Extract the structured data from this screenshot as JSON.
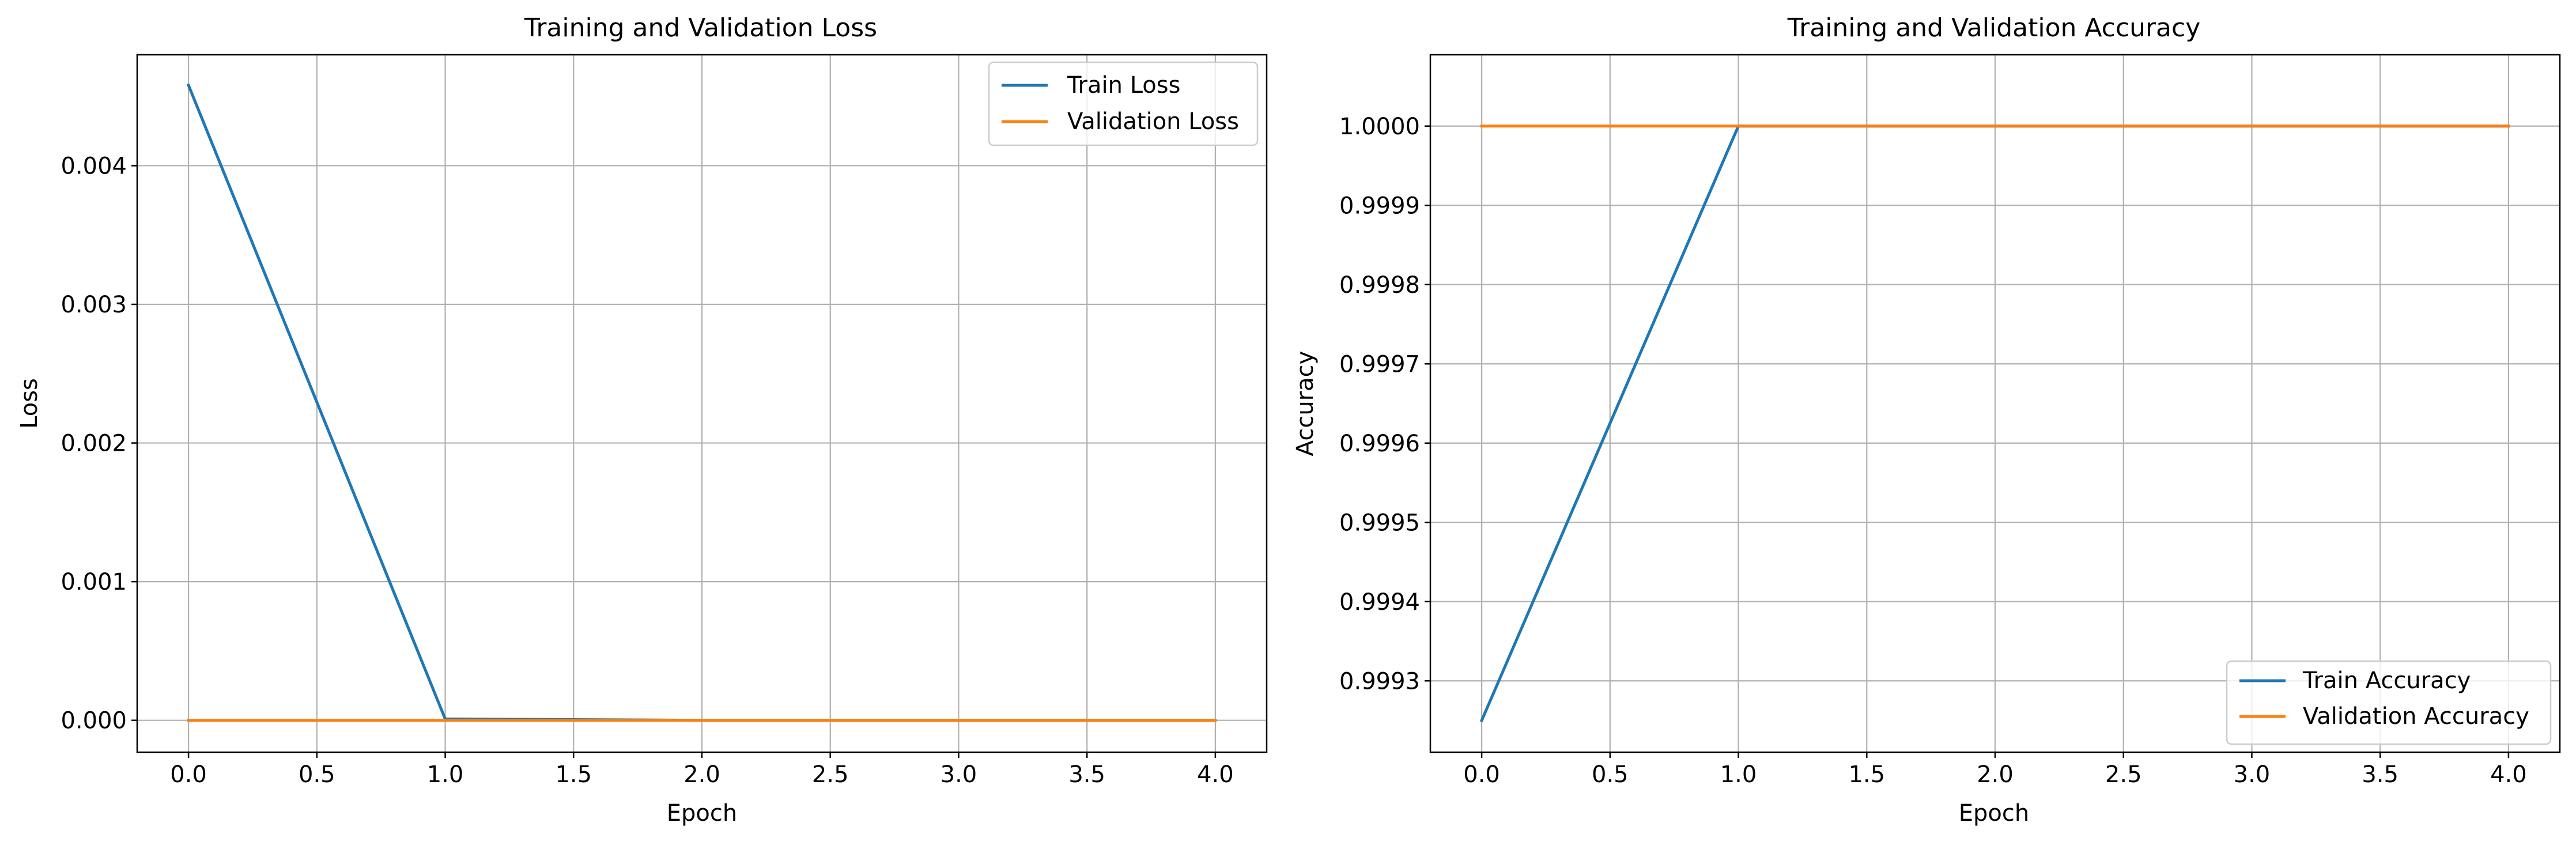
{
  "colors": {
    "train": "#1f77b4",
    "validation": "#ff7f0e",
    "grid": "#b0b0b0",
    "axes": "#000000",
    "legend_edge": "#cccccc"
  },
  "chart_data": [
    {
      "type": "line",
      "title": "Training and Validation Loss",
      "xlabel": "Epoch",
      "ylabel": "Loss",
      "xlim": [
        -0.2,
        4.2
      ],
      "ylim": [
        -0.00023,
        0.0048
      ],
      "x_ticks": [
        "0.0",
        "0.5",
        "1.0",
        "1.5",
        "2.0",
        "2.5",
        "3.0",
        "3.5",
        "4.0"
      ],
      "y_ticks": [
        "0.000",
        "0.001",
        "0.002",
        "0.003",
        "0.004"
      ],
      "grid": true,
      "legend_position": "top-right",
      "x": [
        0,
        1,
        2,
        3,
        4
      ],
      "series": [
        {
          "name": "Train Loss",
          "color_key": "train",
          "values": [
            0.00458,
            1e-05,
            0.0,
            0.0,
            0.0
          ]
        },
        {
          "name": "Validation Loss",
          "color_key": "validation",
          "values": [
            0.0,
            0.0,
            0.0,
            0.0,
            0.0
          ]
        }
      ]
    },
    {
      "type": "line",
      "title": "Training and Validation Accuracy",
      "xlabel": "Epoch",
      "ylabel": "Accuracy",
      "xlim": [
        -0.2,
        4.2
      ],
      "ylim": [
        0.99921,
        1.00009
      ],
      "x_ticks": [
        "0.0",
        "0.5",
        "1.0",
        "1.5",
        "2.0",
        "2.5",
        "3.0",
        "3.5",
        "4.0"
      ],
      "y_ticks": [
        "0.9993",
        "0.9994",
        "0.9995",
        "0.9996",
        "0.9997",
        "0.9998",
        "0.9999",
        "1.0000"
      ],
      "grid": true,
      "legend_position": "bottom-right",
      "x": [
        0,
        1,
        2,
        3,
        4
      ],
      "series": [
        {
          "name": "Train Accuracy",
          "color_key": "train",
          "values": [
            0.99925,
            1.0,
            1.0,
            1.0,
            1.0
          ]
        },
        {
          "name": "Validation Accuracy",
          "color_key": "validation",
          "values": [
            1.0,
            1.0,
            1.0,
            1.0,
            1.0
          ]
        }
      ]
    }
  ]
}
